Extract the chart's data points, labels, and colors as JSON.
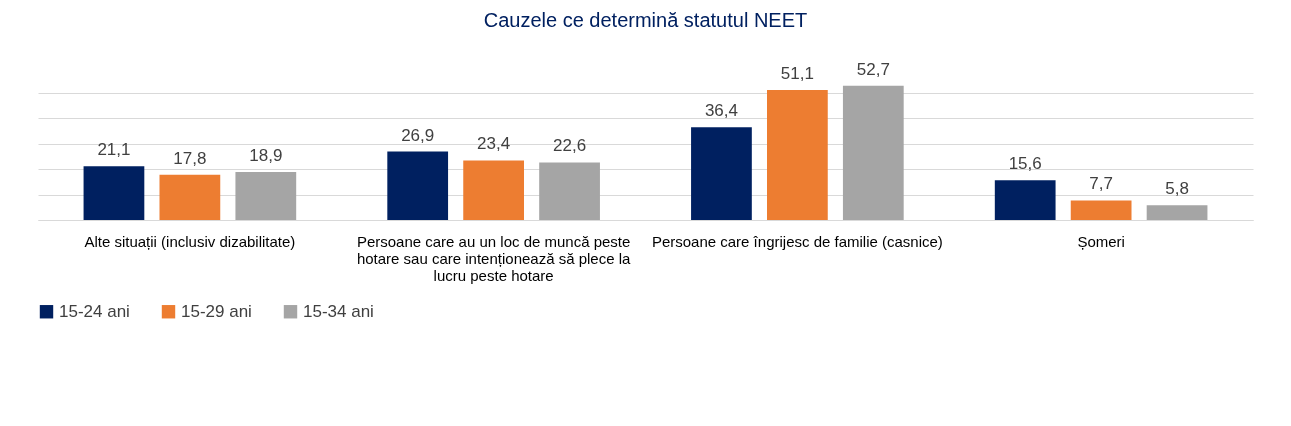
{
  "chart_data": {
    "type": "bar",
    "title": "Cauzele ce determină statutul NEET",
    "categories": [
      "Alte situații (inclusiv dizabilitate)",
      "Persoane care au un loc de muncă peste hotare sau care intenționează să plece la lucru peste hotare",
      "Persoane care îngrijesc de familie (casnice)",
      "Șomeri"
    ],
    "series": [
      {
        "name": "15-24 ani",
        "color": "#002060",
        "values": [
          21.1,
          26.9,
          36.4,
          15.6
        ],
        "value_labels": [
          "21,1",
          "26,9",
          "36,4",
          "15,6"
        ]
      },
      {
        "name": "15-29 ani",
        "color": "#ed7d31",
        "values": [
          17.8,
          23.4,
          51.1,
          7.7
        ],
        "value_labels": [
          "17,8",
          "23,4",
          "51,1",
          "7,7"
        ]
      },
      {
        "name": "15-34 ani",
        "color": "#a5a5a5",
        "values": [
          18.9,
          22.6,
          52.7,
          5.8
        ],
        "value_labels": [
          "18,9",
          "22,6",
          "52,7",
          "5,8"
        ]
      }
    ],
    "grid": "y",
    "tick_labels": "x",
    "legend": "bottom"
  }
}
